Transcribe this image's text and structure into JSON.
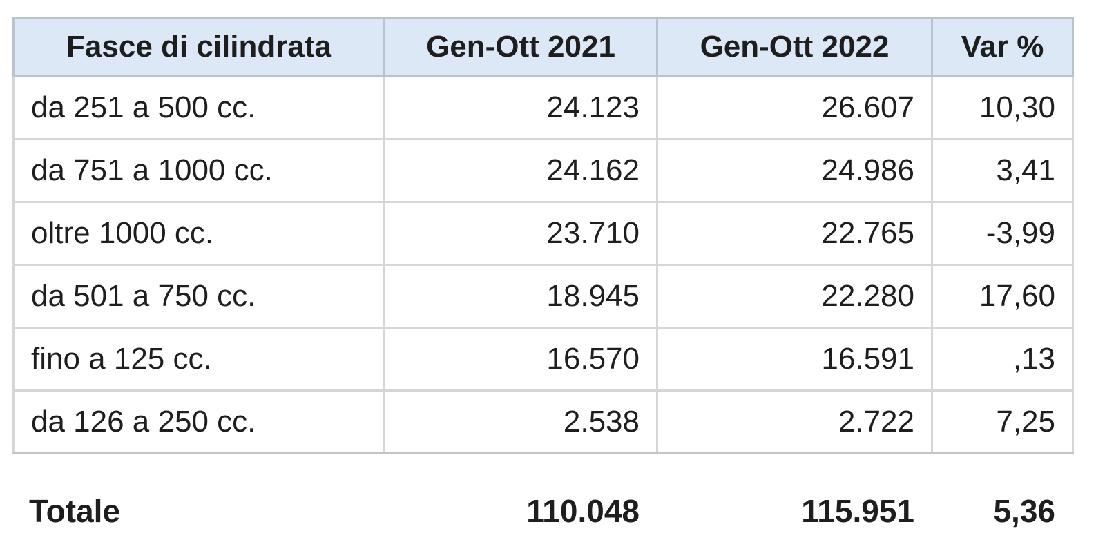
{
  "table": {
    "headers": [
      "Fasce di cilindrata",
      "Gen-Ott 2021",
      "Gen-Ott 2022",
      "Var %"
    ],
    "rows": [
      [
        "da 251 a 500 cc.",
        "24.123",
        "26.607",
        "10,30"
      ],
      [
        "da 751 a 1000 cc.",
        "24.162",
        "24.986",
        "3,41"
      ],
      [
        "oltre 1000 cc.",
        "23.710",
        "22.765",
        "-3,99"
      ],
      [
        "da 501 a 750 cc.",
        "18.945",
        "22.280",
        "17,60"
      ],
      [
        "fino a 125 cc.",
        "16.570",
        "16.591",
        ",13"
      ],
      [
        "da 126 a 250 cc.",
        "2.538",
        "2.722",
        "7,25"
      ]
    ],
    "total": [
      "Totale",
      "110.048",
      "115.951",
      "5,36"
    ]
  }
}
